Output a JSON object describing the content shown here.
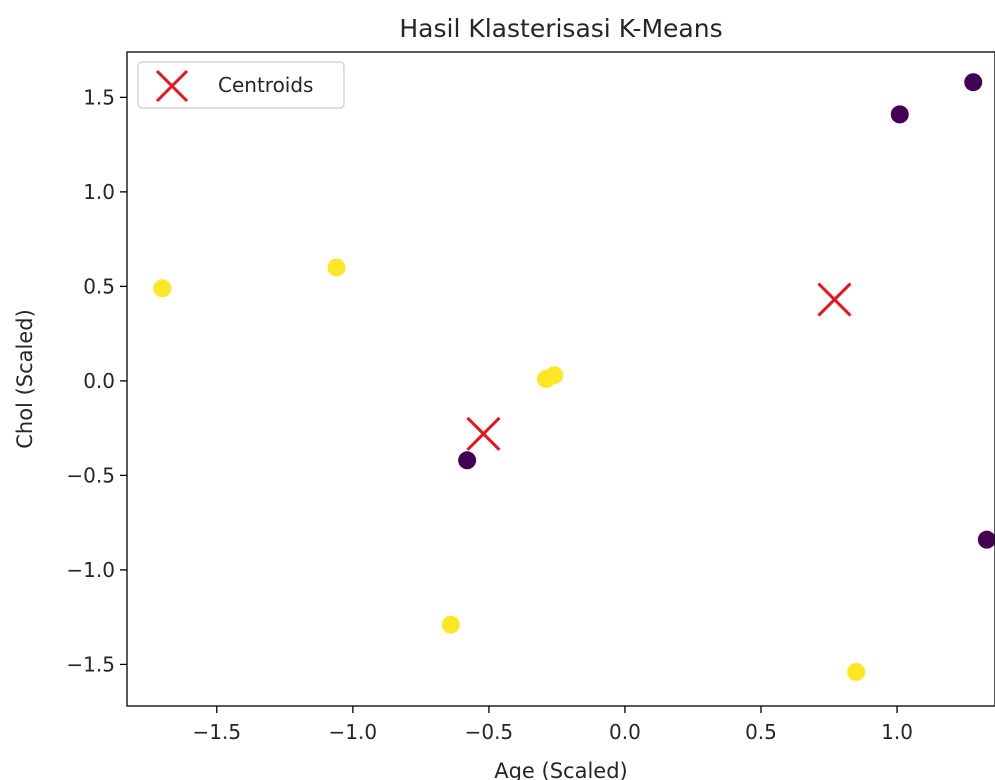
{
  "chart_data": {
    "type": "scatter",
    "title": "Hasil Klasterisasi K-Means",
    "xlabel": "Age (Scaled)",
    "ylabel": "Chol (Scaled)",
    "xlim": [
      -1.83,
      1.36
    ],
    "ylim": [
      -1.72,
      1.74
    ],
    "xticks": [
      -1.5,
      -1.0,
      -0.5,
      0.0,
      0.5,
      1.0
    ],
    "xtick_labels": [
      "−1.5",
      "−1.0",
      "−0.5",
      "0.0",
      "0.5",
      "1.0"
    ],
    "yticks": [
      -1.5,
      -1.0,
      -0.5,
      0.0,
      0.5,
      1.0,
      1.5
    ],
    "ytick_labels": [
      "−1.5",
      "−1.0",
      "−0.5",
      "0.0",
      "0.5",
      "1.0",
      "1.5"
    ],
    "grid": false,
    "legend": {
      "position": "upper-left",
      "entries": [
        "Centroids"
      ]
    },
    "cluster_colors": [
      "#440154",
      "#fde725"
    ],
    "centroid_color": "#e8141c",
    "points": [
      {
        "x": 1.28,
        "y": 1.58,
        "cluster": 0
      },
      {
        "x": 1.01,
        "y": 1.41,
        "cluster": 0
      },
      {
        "x": -0.58,
        "y": -0.42,
        "cluster": 0
      },
      {
        "x": 1.33,
        "y": -0.84,
        "cluster": 0
      },
      {
        "x": -1.7,
        "y": 0.49,
        "cluster": 1
      },
      {
        "x": -1.06,
        "y": 0.6,
        "cluster": 1
      },
      {
        "x": -0.29,
        "y": 0.01,
        "cluster": 1
      },
      {
        "x": -0.26,
        "y": 0.03,
        "cluster": 1
      },
      {
        "x": -0.64,
        "y": -1.29,
        "cluster": 1
      },
      {
        "x": 0.85,
        "y": -1.54,
        "cluster": 1
      }
    ],
    "centroids": [
      {
        "x": 0.77,
        "y": 0.43
      },
      {
        "x": -0.52,
        "y": -0.28
      }
    ]
  }
}
